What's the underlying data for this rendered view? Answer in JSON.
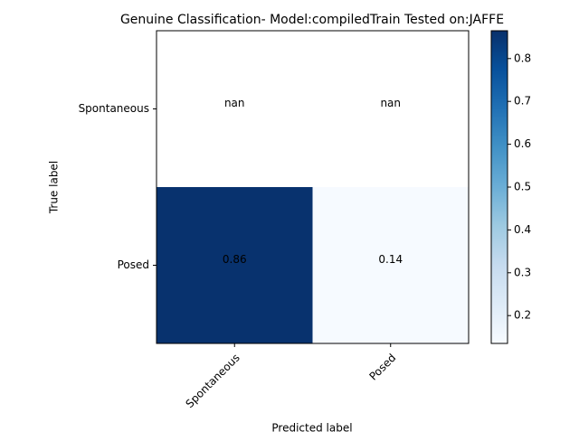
{
  "chart_data": {
    "type": "heatmap",
    "title": "Genuine Classification- Model:compiledTrain Tested on:JAFFE",
    "x_label": "Predicted label",
    "y_label": "True label",
    "x_categories": [
      "Spontaneous",
      "Posed"
    ],
    "y_categories": [
      "Spontaneous",
      "Posed"
    ],
    "values": [
      [
        null,
        null
      ],
      [
        0.86,
        0.14
      ]
    ],
    "value_labels": [
      [
        "nan",
        "nan"
      ],
      [
        "0.86",
        "0.14"
      ]
    ],
    "colormap": "Blues",
    "clim": [
      0.135,
      0.865
    ],
    "cticks": [
      0.2,
      0.3,
      0.4,
      0.5,
      0.6,
      0.7,
      0.8
    ]
  }
}
